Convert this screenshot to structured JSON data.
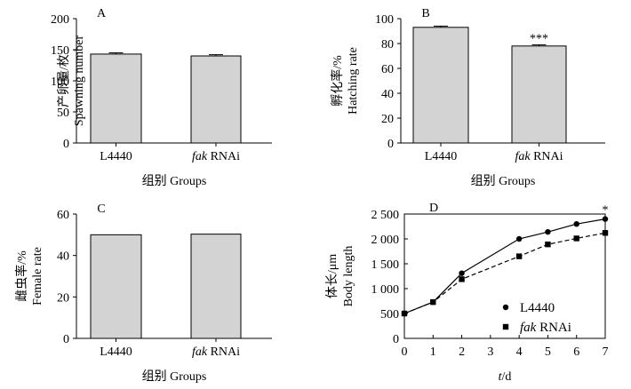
{
  "chart_data": [
    {
      "panel": "A",
      "type": "bar",
      "categories": [
        "L4440",
        "fak RNAi"
      ],
      "values": [
        143,
        140
      ],
      "errors": [
        2,
        2
      ],
      "ylabel_cn": "产卵量/枚",
      "ylabel_en": "Spawning number",
      "xlabel": "组别 Groups",
      "ylim": [
        0,
        200
      ],
      "yticks": [
        "0",
        "50",
        "100",
        "150",
        "200"
      ],
      "bar_color": "#d3d3d3",
      "annotations": []
    },
    {
      "panel": "B",
      "type": "bar",
      "categories": [
        "L4440",
        "fak RNAi"
      ],
      "values": [
        93,
        78
      ],
      "errors": [
        1,
        1
      ],
      "ylabel_cn": "孵化率/%",
      "ylabel_en": "Hatching rate",
      "xlabel": "组别 Groups",
      "ylim": [
        0,
        100
      ],
      "yticks": [
        "0",
        "20",
        "40",
        "60",
        "80",
        "100"
      ],
      "bar_color": "#d3d3d3",
      "annotations": [
        "",
        "***"
      ]
    },
    {
      "panel": "C",
      "type": "bar",
      "categories": [
        "L4440",
        "fak RNAi"
      ],
      "values": [
        50,
        50.3
      ],
      "errors": [
        0,
        0
      ],
      "ylabel_cn": "雌虫率/%",
      "ylabel_en": "Female rate",
      "xlabel": "组别 Groups",
      "ylim": [
        0,
        60
      ],
      "yticks": [
        "0",
        "20",
        "40",
        "60"
      ],
      "bar_color": "#d3d3d3",
      "annotations": []
    },
    {
      "panel": "D",
      "type": "line",
      "x": [
        0,
        1,
        2,
        4,
        5,
        6,
        7
      ],
      "xticks": [
        "0",
        "1",
        "2",
        "3",
        "4",
        "5",
        "6",
        "7"
      ],
      "xlim": [
        0,
        7
      ],
      "ylim": [
        0,
        2500
      ],
      "yticks": [
        "0",
        "500",
        "1 000",
        "1 500",
        "2 000",
        "2 500"
      ],
      "ylabel_cn": "体长/μm",
      "ylabel_en": "Body length",
      "xlabel_italic": "t",
      "xlabel_rest": "/d",
      "legend_position": "center-right",
      "end_annotation": "*",
      "series": [
        {
          "name_italic": "",
          "name_rest": "L4440",
          "marker": "circle",
          "dash": "solid",
          "values": [
            500,
            730,
            1310,
            2000,
            2140,
            2300,
            2400
          ]
        },
        {
          "name_italic": "fak",
          "name_rest": " RNAi",
          "marker": "square",
          "dash": "dashed",
          "values": [
            500,
            730,
            1190,
            1650,
            1890,
            2010,
            2120
          ]
        }
      ]
    }
  ]
}
